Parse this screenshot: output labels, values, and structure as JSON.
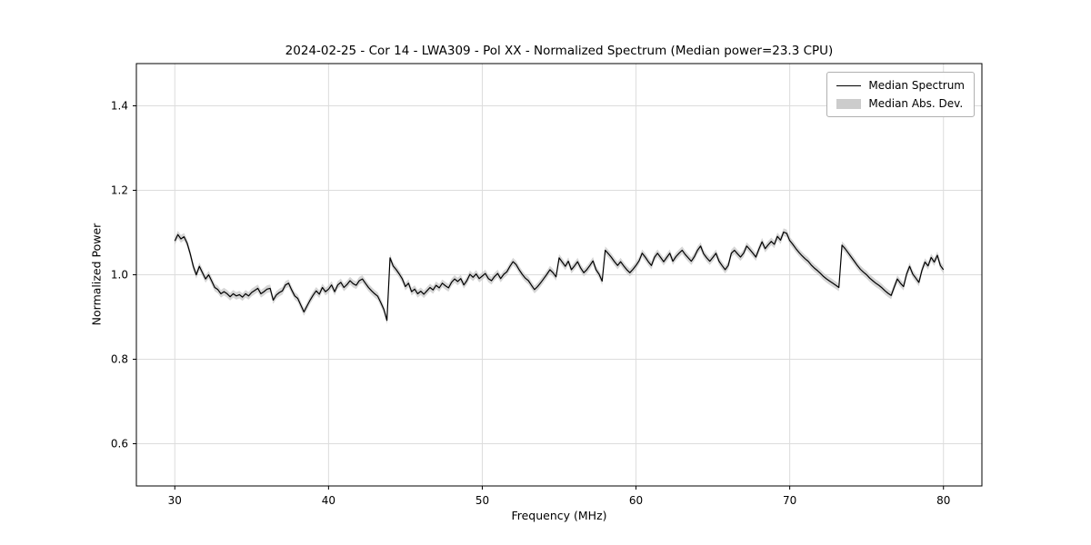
{
  "chart_data": {
    "type": "line",
    "title": "2024-02-25 - Cor 14 - LWA309 - Pol XX - Normalized Spectrum (Median power=23.3 CPU)",
    "xlabel": "Frequency (MHz)",
    "ylabel": "Normalized Power",
    "xlim": [
      27.5,
      82.5
    ],
    "ylim": [
      0.5,
      1.5
    ],
    "x_ticks": [
      30,
      40,
      50,
      60,
      70,
      80
    ],
    "y_ticks": [
      0.6,
      0.8,
      1.0,
      1.2,
      1.4
    ],
    "grid": true,
    "legend_position": "upper right",
    "colors": {
      "line": "#000000",
      "band": "#c8c8c8",
      "grid": "#dcdcdc",
      "background": "#ffffff"
    },
    "series": [
      {
        "name": "Median Spectrum",
        "kind": "line",
        "color": "#000000",
        "x_start": 30.0,
        "x_step": 0.2,
        "y": [
          1.08,
          1.095,
          1.085,
          1.09,
          1.075,
          1.05,
          1.02,
          1.0,
          1.02,
          1.005,
          0.99,
          1.0,
          0.985,
          0.97,
          0.965,
          0.955,
          0.96,
          0.955,
          0.948,
          0.955,
          0.95,
          0.953,
          0.947,
          0.955,
          0.95,
          0.958,
          0.963,
          0.968,
          0.955,
          0.96,
          0.966,
          0.968,
          0.94,
          0.952,
          0.958,
          0.962,
          0.976,
          0.98,
          0.964,
          0.95,
          0.944,
          0.928,
          0.912,
          0.926,
          0.94,
          0.952,
          0.962,
          0.954,
          0.97,
          0.96,
          0.966,
          0.976,
          0.96,
          0.976,
          0.982,
          0.97,
          0.977,
          0.986,
          0.979,
          0.975,
          0.986,
          0.99,
          0.98,
          0.97,
          0.962,
          0.955,
          0.949,
          0.934,
          0.918,
          0.892,
          1.04,
          1.021,
          1.012,
          1.002,
          0.99,
          0.972,
          0.98,
          0.96,
          0.966,
          0.955,
          0.961,
          0.954,
          0.962,
          0.97,
          0.964,
          0.975,
          0.969,
          0.98,
          0.974,
          0.969,
          0.982,
          0.99,
          0.984,
          0.991,
          0.976,
          0.986,
          1.001,
          0.994,
          1.002,
          0.991,
          0.997,
          1.003,
          0.991,
          0.986,
          0.996,
          1.003,
          0.991,
          1.001,
          1.007,
          1.02,
          1.031,
          1.024,
          1.012,
          1.001,
          0.992,
          0.986,
          0.975,
          0.965,
          0.972,
          0.981,
          0.991,
          1.001,
          1.012,
          1.005,
          0.995,
          1.04,
          1.03,
          1.02,
          1.032,
          1.012,
          1.021,
          1.031,
          1.016,
          1.005,
          1.012,
          1.022,
          1.033,
          1.012,
          1.001,
          0.985,
          1.058,
          1.05,
          1.041,
          1.031,
          1.022,
          1.031,
          1.021,
          1.012,
          1.005,
          1.013,
          1.022,
          1.033,
          1.051,
          1.042,
          1.031,
          1.022,
          1.041,
          1.051,
          1.041,
          1.031,
          1.041,
          1.051,
          1.032,
          1.043,
          1.051,
          1.058,
          1.048,
          1.04,
          1.032,
          1.043,
          1.058,
          1.068,
          1.05,
          1.04,
          1.032,
          1.041,
          1.051,
          1.032,
          1.022,
          1.012,
          1.022,
          1.051,
          1.058,
          1.05,
          1.042,
          1.051,
          1.068,
          1.06,
          1.051,
          1.042,
          1.061,
          1.078,
          1.062,
          1.071,
          1.079,
          1.072,
          1.091,
          1.082,
          1.101,
          1.098,
          1.081,
          1.072,
          1.062,
          1.053,
          1.045,
          1.038,
          1.032,
          1.023,
          1.016,
          1.01,
          1.003,
          0.996,
          0.99,
          0.985,
          0.98,
          0.975,
          0.97,
          1.07,
          1.062,
          1.052,
          1.042,
          1.032,
          1.022,
          1.013,
          1.006,
          1.0,
          0.992,
          0.986,
          0.98,
          0.975,
          0.969,
          0.962,
          0.956,
          0.951,
          0.971,
          0.99,
          0.98,
          0.972,
          1.001,
          1.02,
          1.002,
          0.992,
          0.982,
          1.011,
          1.03,
          1.021,
          1.041,
          1.03,
          1.046,
          1.022,
          1.012
        ]
      },
      {
        "name": "Median Abs. Dev.",
        "kind": "band",
        "color": "#c8c8c8",
        "half_width": 0.009
      }
    ]
  }
}
